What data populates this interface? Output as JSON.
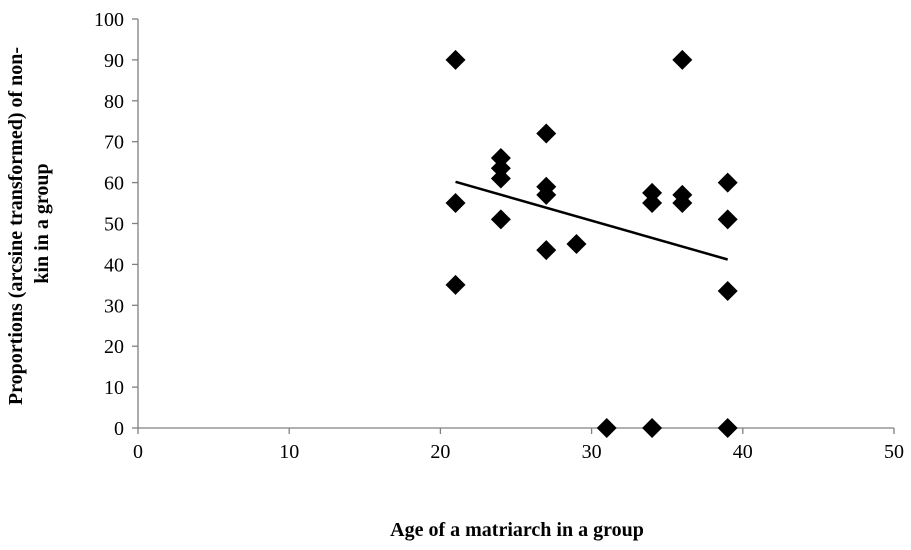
{
  "chart_data": {
    "type": "scatter",
    "xlabel": "Age of a matriarch in a group",
    "ylabel_lines": [
      "Proportions (arcsine transformed) of non-",
      "kin in a group"
    ],
    "xlim": [
      0,
      50
    ],
    "ylim": [
      0,
      100
    ],
    "x_ticks": [
      0,
      10,
      20,
      30,
      40,
      50
    ],
    "y_ticks": [
      0,
      10,
      20,
      30,
      40,
      50,
      60,
      70,
      80,
      90,
      100
    ],
    "grid": false,
    "legend": "none",
    "marker": "diamond",
    "marker_color": "#000000",
    "points": [
      {
        "x": 21,
        "y": 90
      },
      {
        "x": 21,
        "y": 55
      },
      {
        "x": 21,
        "y": 35
      },
      {
        "x": 24,
        "y": 66
      },
      {
        "x": 24,
        "y": 63.5
      },
      {
        "x": 24,
        "y": 61
      },
      {
        "x": 24,
        "y": 51
      },
      {
        "x": 27,
        "y": 72
      },
      {
        "x": 27,
        "y": 59
      },
      {
        "x": 27,
        "y": 57
      },
      {
        "x": 27,
        "y": 43.5
      },
      {
        "x": 29,
        "y": 45
      },
      {
        "x": 31,
        "y": 0
      },
      {
        "x": 34,
        "y": 57.5
      },
      {
        "x": 34,
        "y": 55
      },
      {
        "x": 34,
        "y": 0
      },
      {
        "x": 36,
        "y": 90
      },
      {
        "x": 36,
        "y": 57
      },
      {
        "x": 36,
        "y": 55
      },
      {
        "x": 39,
        "y": 60
      },
      {
        "x": 39,
        "y": 51
      },
      {
        "x": 39,
        "y": 33.5
      },
      {
        "x": 39,
        "y": 0
      }
    ],
    "trendline": {
      "x": [
        21,
        39
      ],
      "y": [
        60.2,
        41.2
      ]
    }
  }
}
